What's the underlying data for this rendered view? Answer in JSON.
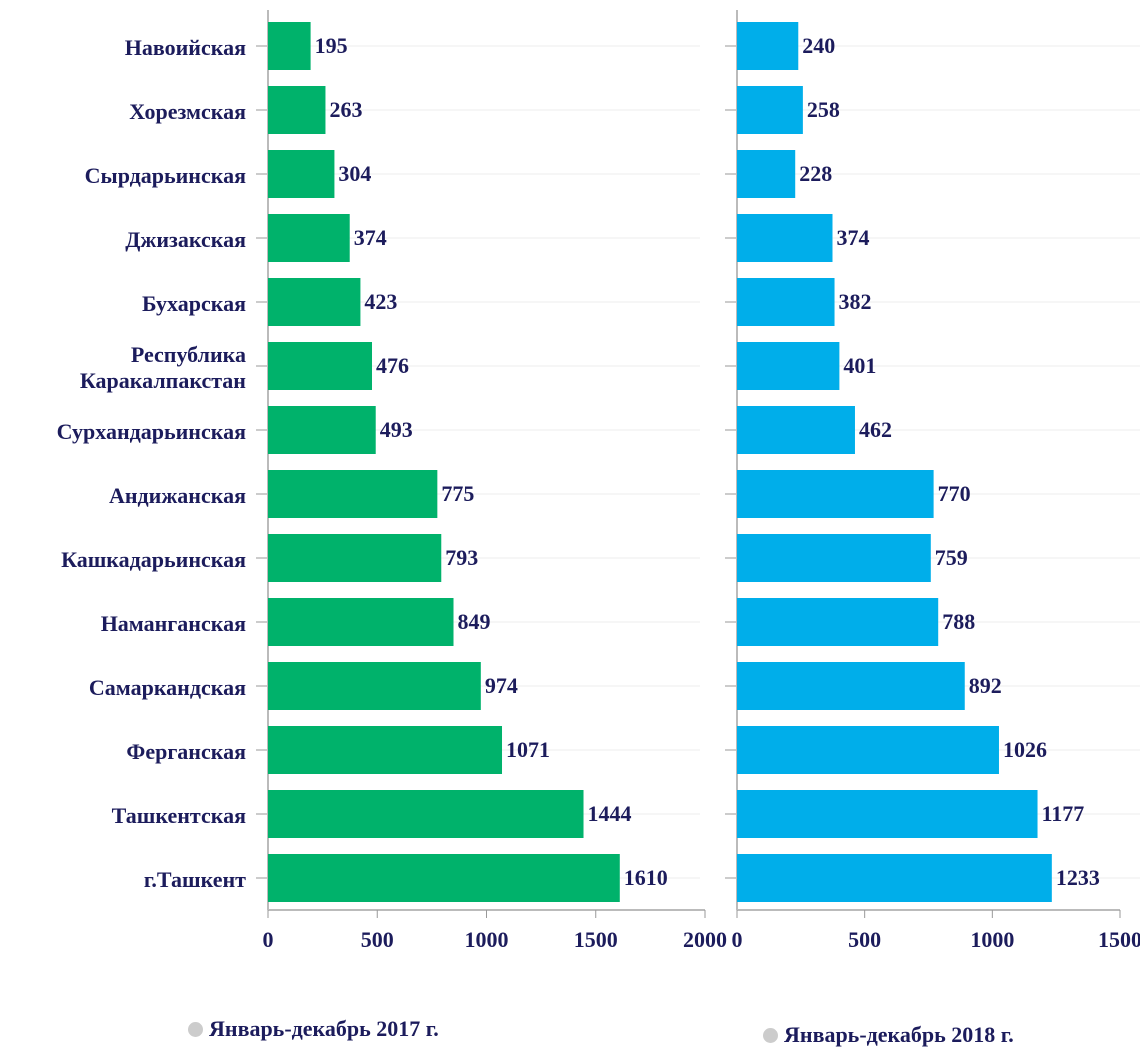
{
  "chart_data": [
    {
      "type": "bar",
      "orientation": "horizontal",
      "categories": [
        "Навоийская",
        "Хорезмская",
        "Сырдарьинская",
        "Джизакская",
        "Бухарская",
        "Республика Каракалпакстан",
        "Сурхандарьинская",
        "Андижанская",
        "Кашкадарьинская",
        "Наманганская",
        "Самаркандская",
        "Ферганская",
        "Ташкентская",
        "г.Ташкент"
      ],
      "series": [
        {
          "name": "Январь-декабрь 2017 г.",
          "color": "#00b26b",
          "values": [
            195,
            263,
            304,
            374,
            423,
            476,
            493,
            775,
            793,
            849,
            974,
            1071,
            1444,
            1610
          ]
        }
      ],
      "xlim": [
        0,
        2000
      ],
      "xticks": [
        0,
        500,
        1000,
        1500,
        2000
      ],
      "grid": true
    },
    {
      "type": "bar",
      "orientation": "horizontal",
      "series": [
        {
          "name": "Январь-декабрь 2018 г.",
          "color": "#00aeea",
          "values": [
            240,
            258,
            228,
            374,
            382,
            401,
            462,
            770,
            759,
            788,
            892,
            1026,
            1177,
            1233
          ]
        }
      ],
      "xlim": [
        0,
        1500
      ],
      "xticks": [
        0,
        500,
        1000,
        1500
      ],
      "grid": true
    }
  ]
}
